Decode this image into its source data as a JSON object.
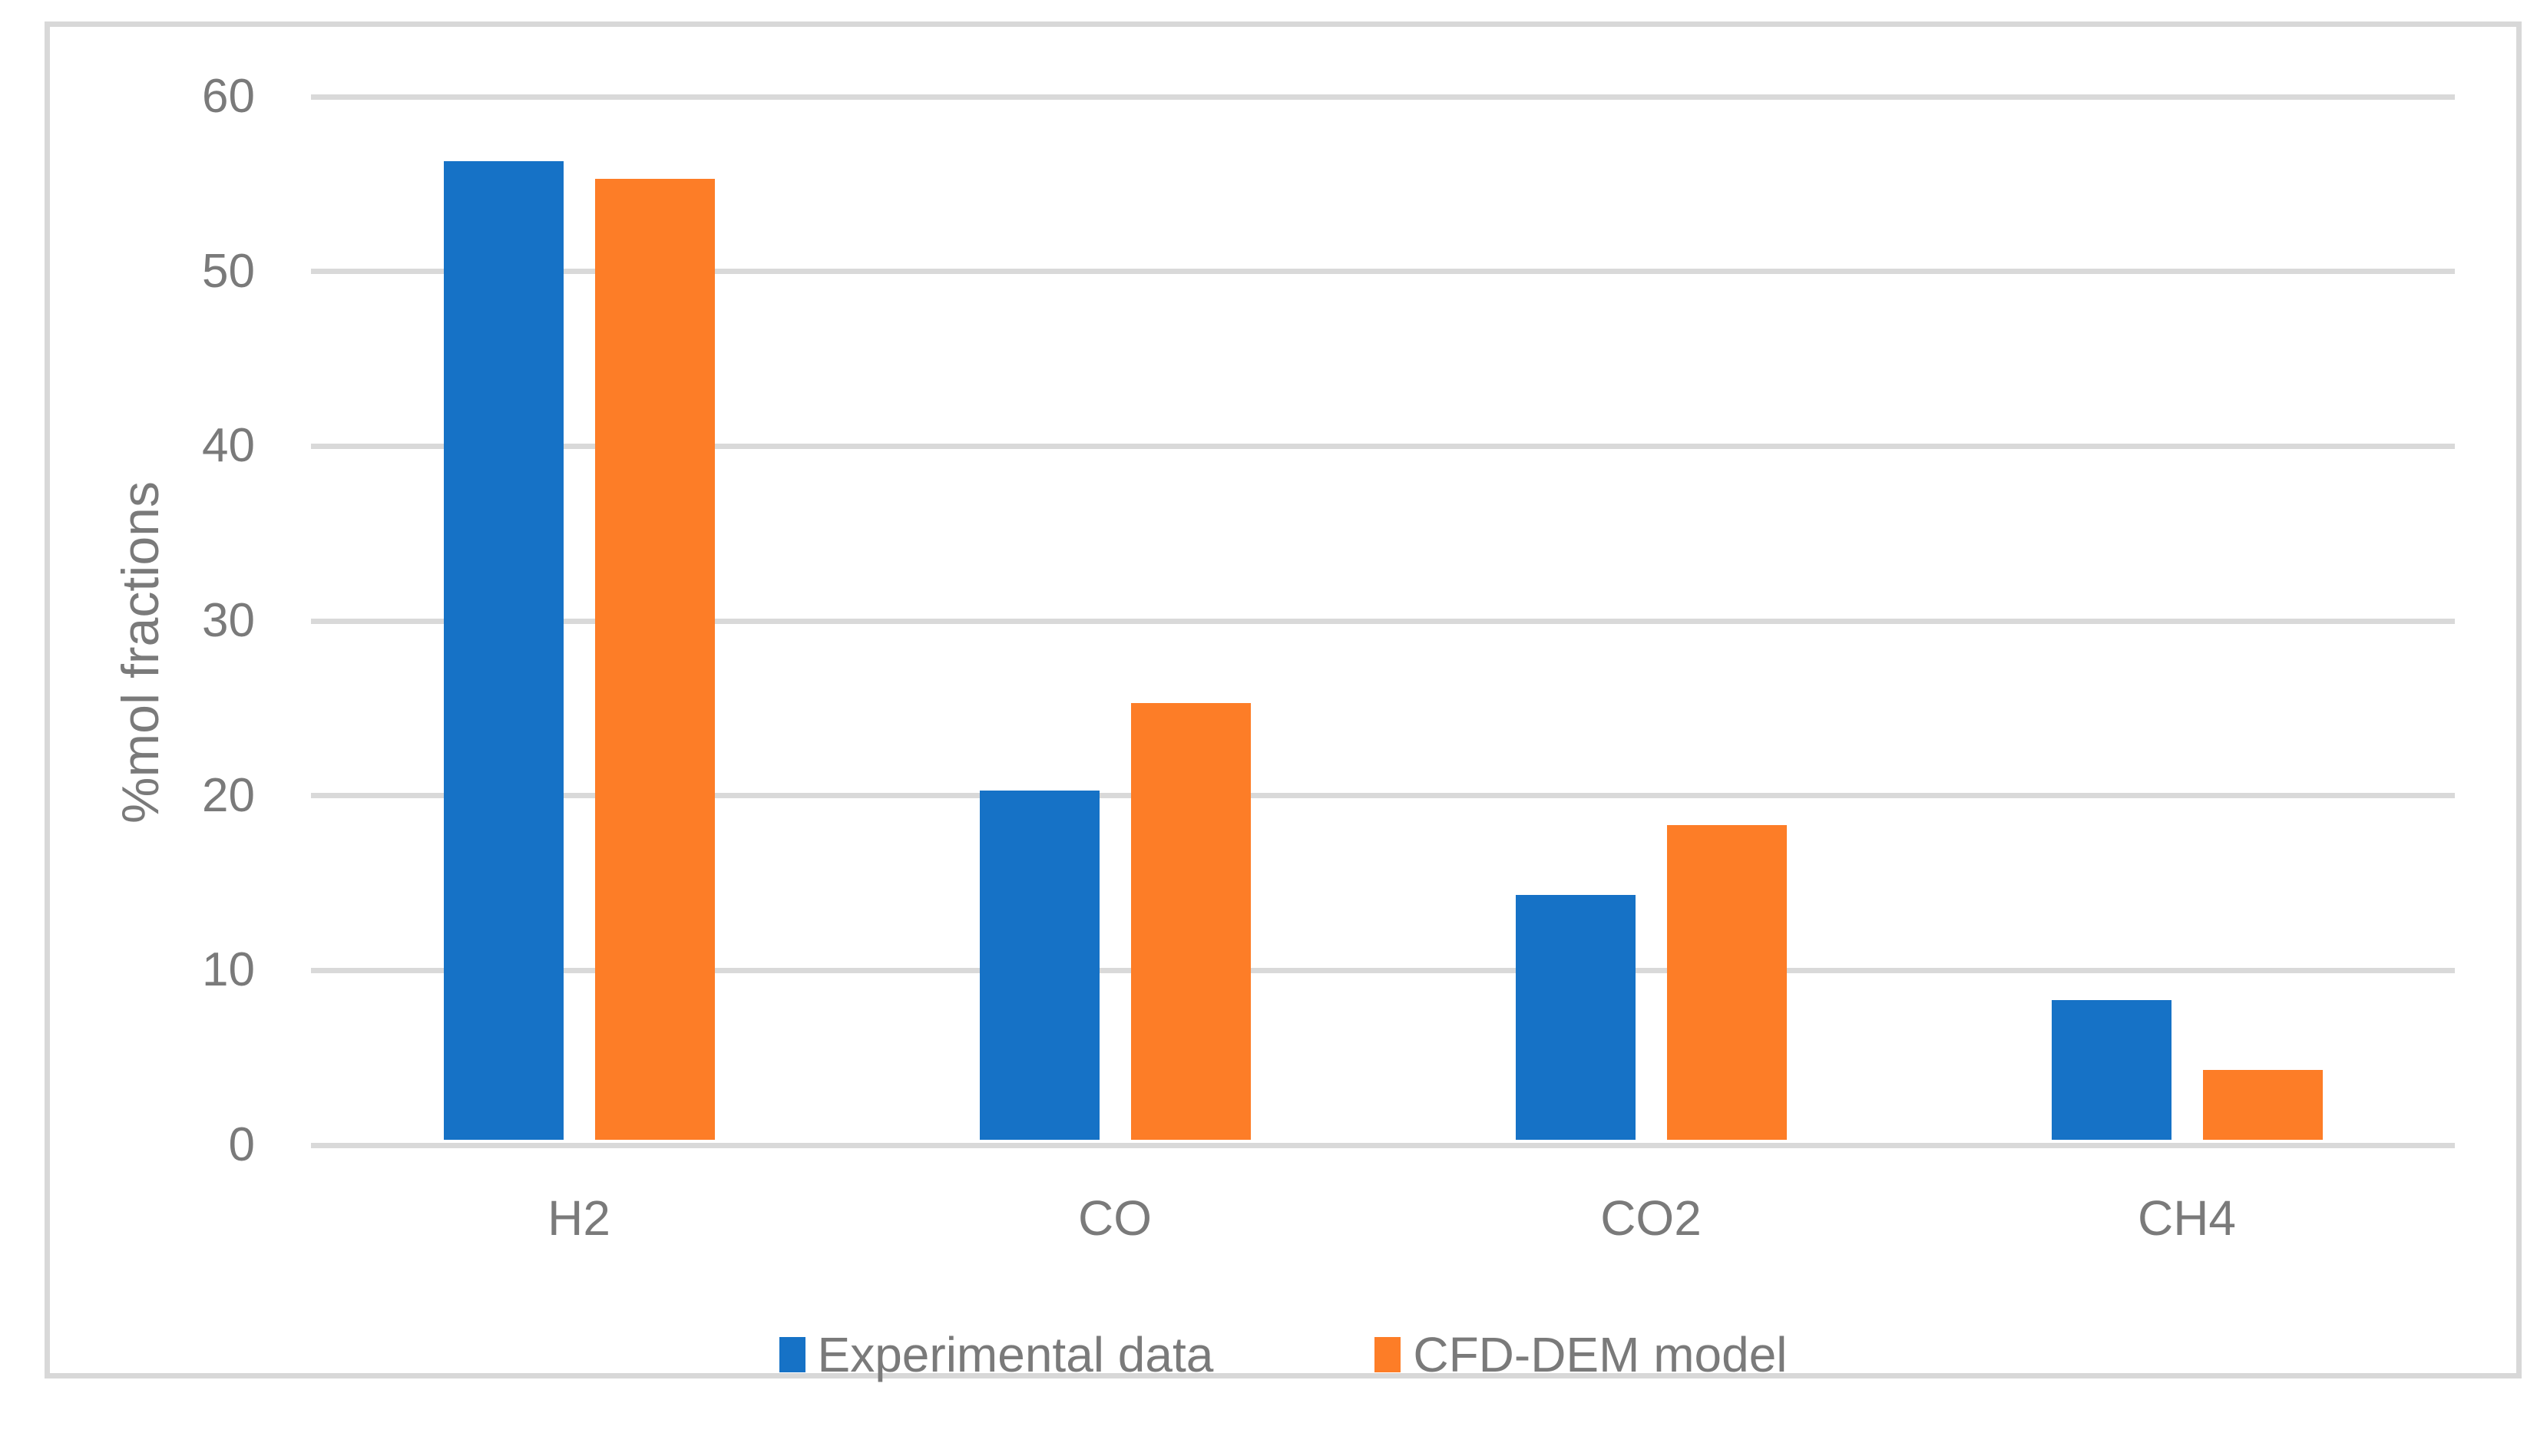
{
  "chart_data": {
    "type": "bar",
    "title": "",
    "categories": [
      "H2",
      "CO",
      "CO2",
      "CH4"
    ],
    "series": [
      {
        "name": "Experimental data",
        "color": "#1672C6",
        "values": [
          56,
          20,
          14,
          8
        ]
      },
      {
        "name": "CFD-DEM model",
        "color": "#FD7D27",
        "values": [
          55,
          25,
          18,
          4
        ]
      }
    ],
    "xlabel": "",
    "ylabel": "%mol fractions",
    "ylim": [
      0,
      60
    ],
    "ytick_step": 10,
    "yticks": [
      0,
      10,
      20,
      30,
      40,
      50,
      60
    ],
    "grid": true,
    "legend_position": "bottom"
  },
  "style": {
    "bar_blue": "#1672C6",
    "bar_orange": "#FD7D27",
    "grid_color": "#D9D9D9",
    "border_color": "#D8D8D8",
    "text_color": "#7A7A7A",
    "background": "#FFFFFF"
  }
}
